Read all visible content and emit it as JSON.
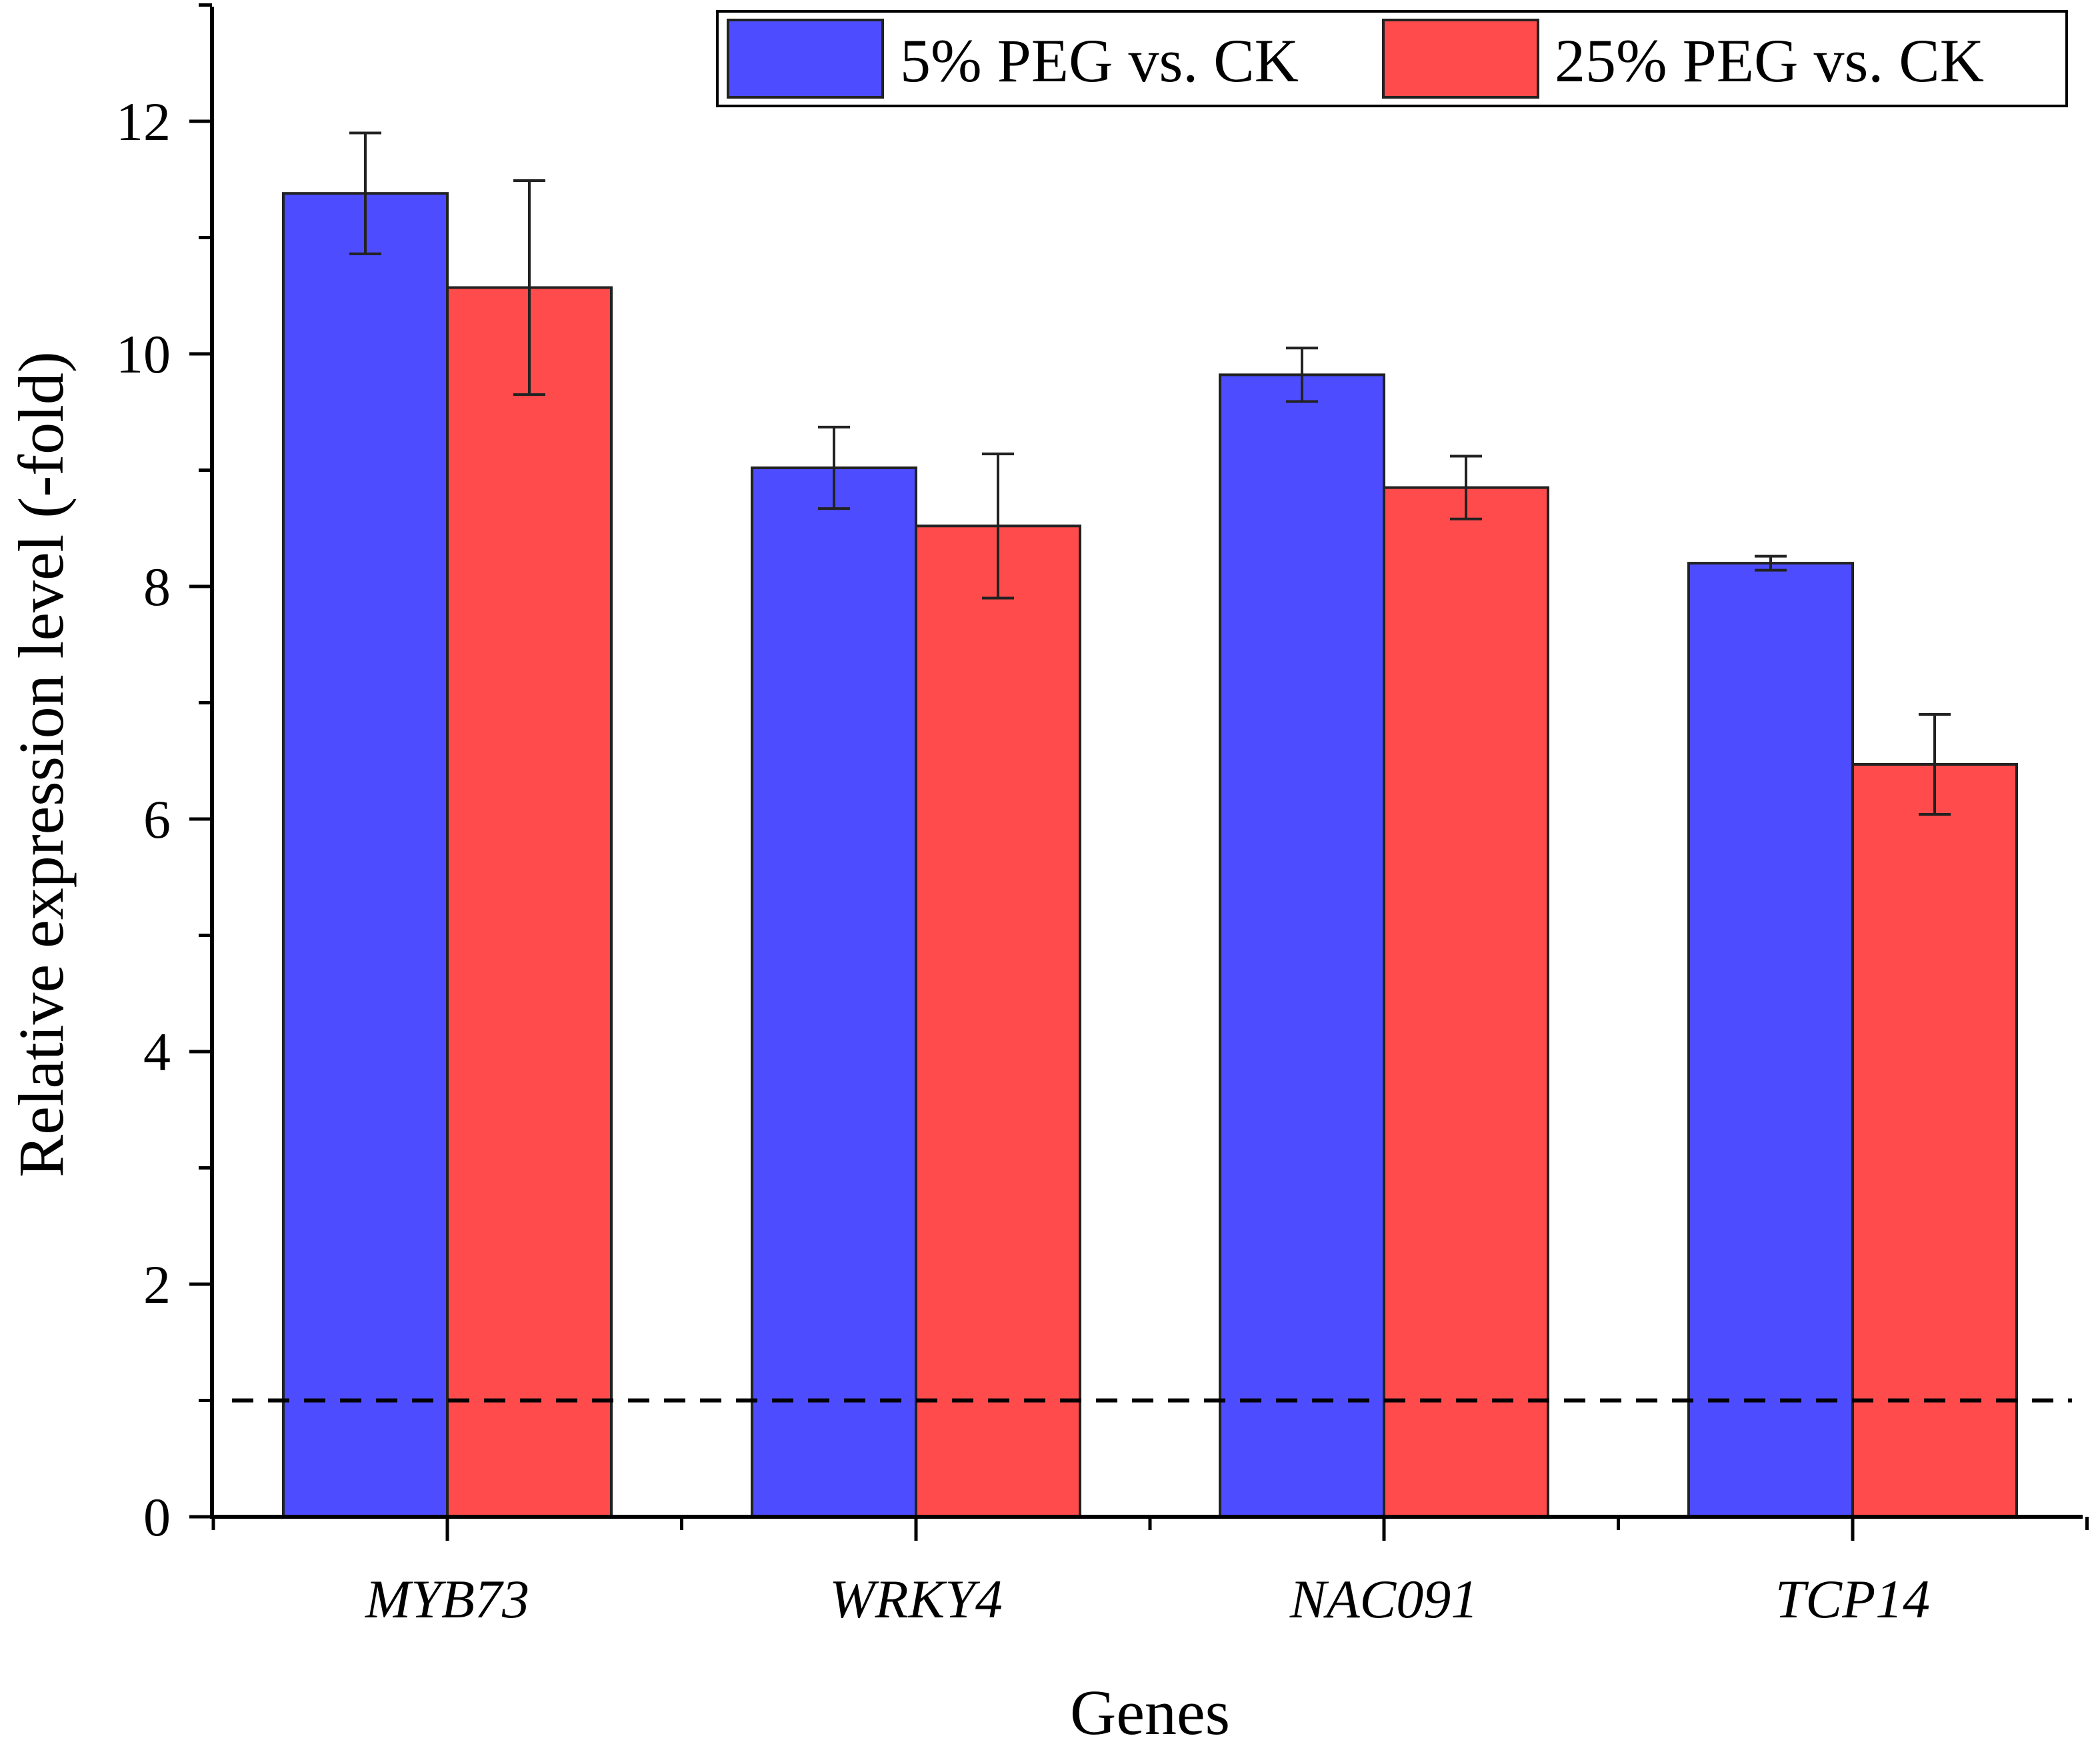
{
  "chart_data": {
    "type": "bar",
    "title": "",
    "xlabel": "Genes",
    "ylabel": "Relative expression level (-fold)",
    "ylim": [
      0,
      13
    ],
    "yticks": [
      0,
      2,
      4,
      6,
      8,
      10,
      12
    ],
    "categories": [
      "MYB73",
      "WRKY4",
      "NAC091",
      "TCP14"
    ],
    "series": [
      {
        "name": "5% PEG vs. CK",
        "color": "#4d4dff",
        "values": [
          11.38,
          9.02,
          9.82,
          8.2
        ],
        "errors": [
          0.52,
          0.35,
          0.23,
          0.06
        ]
      },
      {
        "name": "25% PEG vs. CK",
        "color": "#ff4b4b",
        "values": [
          10.57,
          8.52,
          8.85,
          6.47
        ],
        "errors": [
          0.92,
          0.62,
          0.27,
          0.43
        ]
      }
    ],
    "reference_line": {
      "value": 1,
      "style": "dashed",
      "color": "#000000"
    },
    "legend_position": "top-right",
    "grid": false
  }
}
